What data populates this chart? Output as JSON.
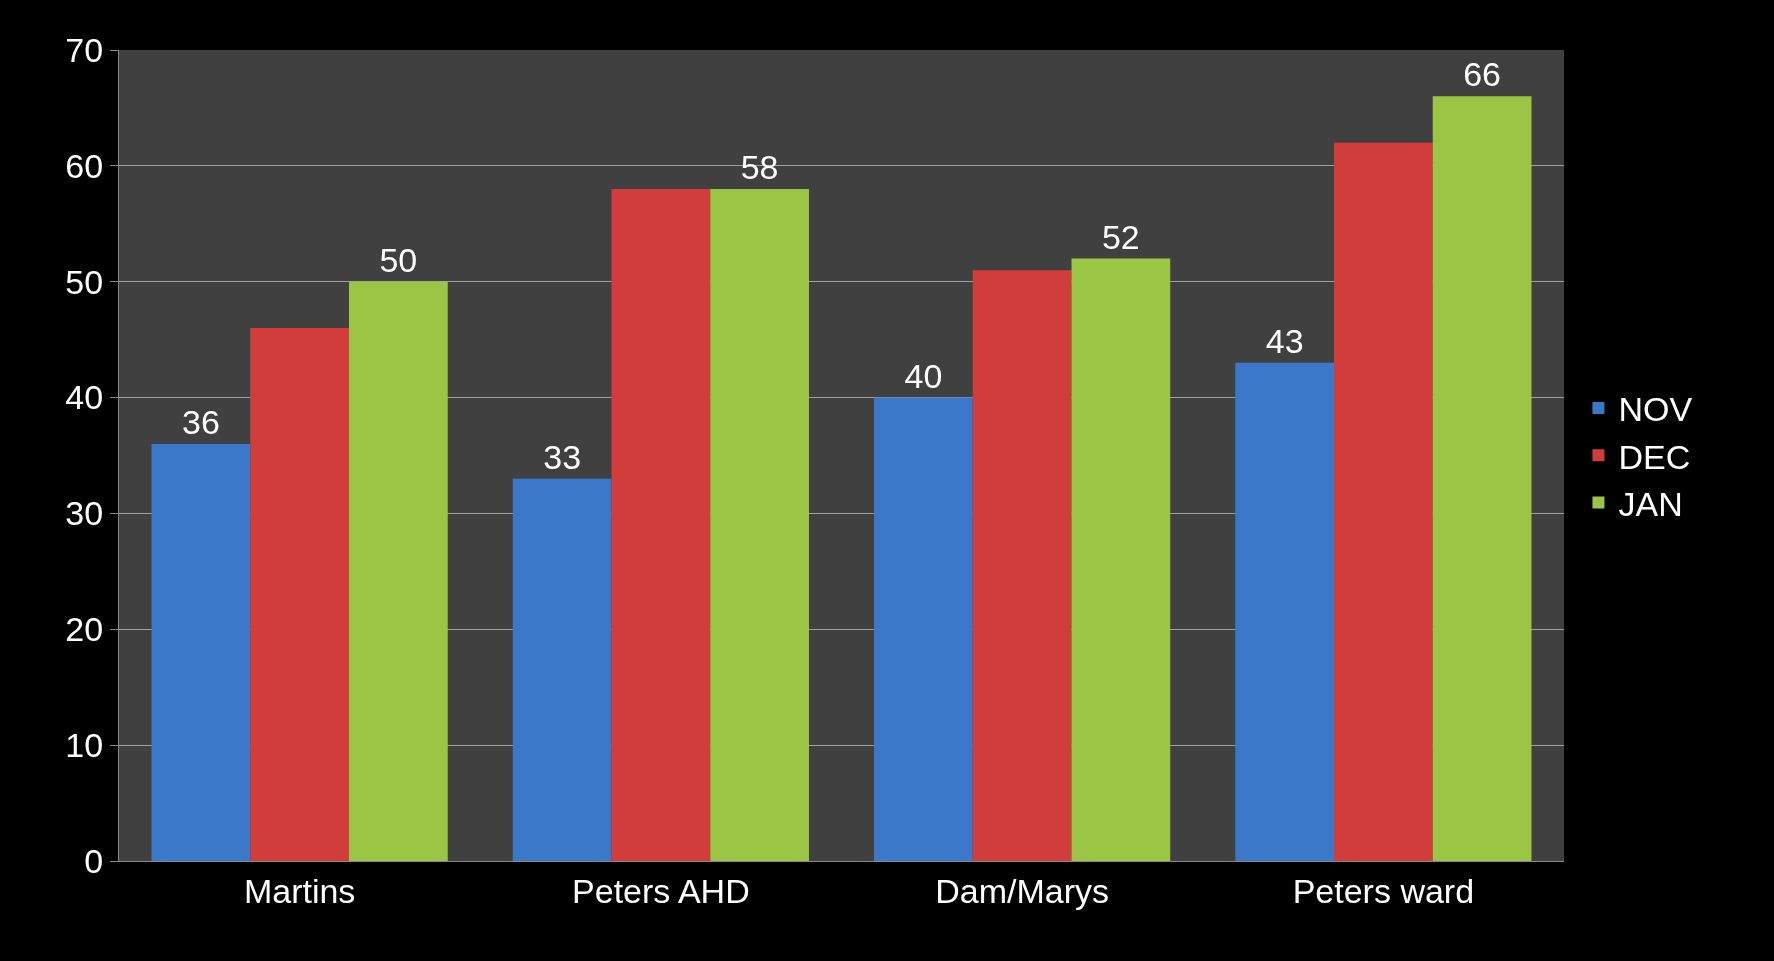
{
  "chart_data": {
    "type": "bar",
    "categories": [
      "Martins",
      "Peters AHD",
      "Dam/Marys",
      "Peters ward"
    ],
    "series": [
      {
        "name": "NOV",
        "color": "#3b78c9",
        "values": [
          36,
          33,
          40,
          43
        ],
        "value_labels": [
          "36",
          "33",
          "40",
          "43"
        ]
      },
      {
        "name": "DEC",
        "color": "#d13d3b",
        "values": [
          46,
          58,
          51,
          62
        ],
        "value_labels": [
          null,
          null,
          null,
          null
        ]
      },
      {
        "name": "JAN",
        "color": "#9bc545",
        "values": [
          50,
          58,
          52,
          66
        ],
        "value_labels": [
          "50",
          "58",
          "52",
          "66"
        ]
      }
    ],
    "ylim": [
      0,
      70
    ],
    "yticks": [
      0,
      10,
      20,
      30,
      40,
      50,
      60,
      70
    ],
    "grid": "y",
    "legend": "right"
  }
}
